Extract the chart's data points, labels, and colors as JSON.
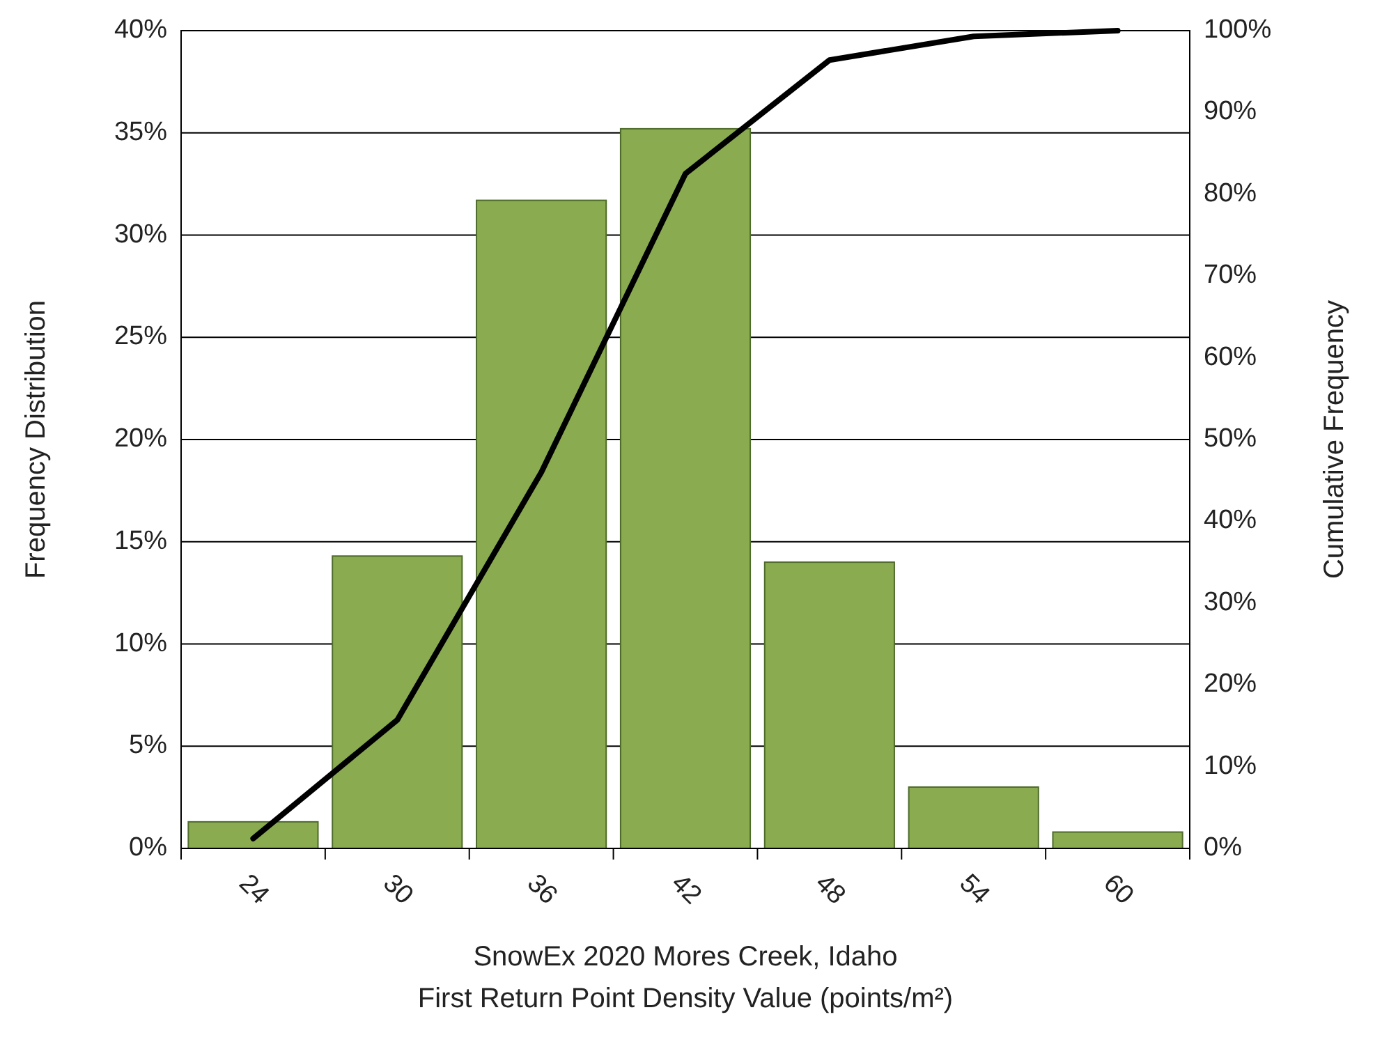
{
  "chart_data": {
    "type": "bar",
    "xlabel": "SnowEx 2020 Mores Creek, Idaho\nFirst Return Point Density Value (points/m²)",
    "ylabel": "Frequency Distribution",
    "y2label": "Cumulative Frequency",
    "categories": [
      "24",
      "30",
      "36",
      "42",
      "48",
      "54",
      "60"
    ],
    "series": [
      {
        "color": "#8aab4f",
        "values": [
          1.3,
          14.3,
          31.7,
          35.2,
          14.0,
          3.0,
          0.8
        ]
      },
      {
        "type": "line",
        "axis": "y2",
        "color": "#000000",
        "values": [
          1.2,
          15.7,
          46,
          82.5,
          96.4,
          99.3,
          100
        ]
      }
    ],
    "ylim": [
      0,
      40
    ],
    "yticks": [
      {
        "value": 0,
        "label": "0%"
      },
      {
        "value": 5,
        "label": "5%"
      },
      {
        "value": 10,
        "label": "10%"
      },
      {
        "value": 15,
        "label": "15%"
      },
      {
        "value": 20,
        "label": "20%"
      },
      {
        "value": 25,
        "label": "25%"
      },
      {
        "value": 30,
        "label": "30%"
      },
      {
        "value": 35,
        "label": "35%"
      },
      {
        "value": 40,
        "label": "40%"
      }
    ],
    "y2lim": [
      0,
      100
    ],
    "y2ticks": [
      {
        "value": 0,
        "label": "0%"
      },
      {
        "value": 10,
        "label": "10%"
      },
      {
        "value": 20,
        "label": "20%"
      },
      {
        "value": 30,
        "label": "30%"
      },
      {
        "value": 40,
        "label": "40%"
      },
      {
        "value": 50,
        "label": "50%"
      },
      {
        "value": 60,
        "label": "60%"
      },
      {
        "value": 70,
        "label": "70%"
      },
      {
        "value": 80,
        "label": "80%"
      },
      {
        "value": 90,
        "label": "90%"
      },
      {
        "value": 100,
        "label": "100%"
      }
    ],
    "grid": "y",
    "marker": "none",
    "line_style": "solid"
  }
}
